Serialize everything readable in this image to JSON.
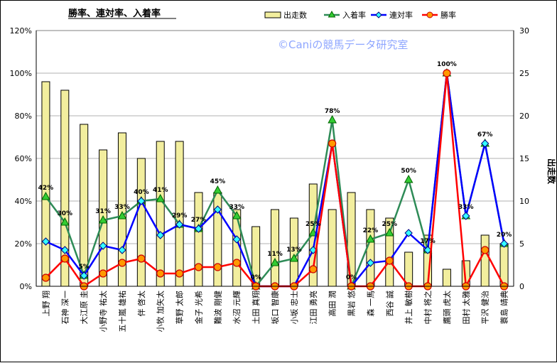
{
  "chart_data": {
    "type": "bar",
    "title": "勝率、連対率、入着率",
    "watermark": "©Caniの競馬データ研究室",
    "y2label": "出走数",
    "y1ticks": [
      "0%",
      "20%",
      "40%",
      "60%",
      "80%",
      "100%",
      "120%"
    ],
    "y2ticks": [
      "0",
      "5",
      "10",
      "15",
      "20",
      "25",
      "30"
    ],
    "y1lim": [
      0,
      120
    ],
    "y2lim": [
      0,
      30
    ],
    "grid": true,
    "legend_position": "top",
    "categories": [
      "上野 翔",
      "石神 深一",
      "大江原 圭",
      "小野寺 祐太",
      "五十嵐 雄祐",
      "伴 啓太",
      "小牧 加矢太",
      "草野 太郎",
      "金子 光希",
      "難波 剛健",
      "水沼 元輝",
      "土田 真翔",
      "坂口 智康",
      "小坂 忠士",
      "江田 勇亮",
      "高田 潤",
      "黒岩 悠",
      "森 一馬",
      "西谷 誠",
      "井上 敏樹",
      "中村 将之",
      "鷹頭 虎太",
      "田村 太雅",
      "平沢 健治",
      "蓑島 靖典"
    ],
    "series": [
      {
        "name": "出走数",
        "type": "bar",
        "axis": "right",
        "color": "#f2ee9e",
        "values": [
          24,
          23,
          19,
          16,
          18,
          15,
          17,
          17,
          11,
          11,
          9,
          7,
          9,
          8,
          12,
          9,
          11,
          9,
          8,
          4,
          6,
          2,
          3,
          6,
          5
        ]
      },
      {
        "name": "入着率",
        "type": "line",
        "axis": "left",
        "color": "#2e8b57",
        "values": [
          42,
          30,
          5,
          31,
          33,
          40,
          41,
          29,
          27,
          45,
          33,
          0,
          11,
          13,
          25,
          78,
          0,
          22,
          25,
          50,
          17,
          100,
          33,
          67,
          20
        ]
      },
      {
        "name": "連対率",
        "type": "line",
        "axis": "left",
        "color": "#0000ff",
        "values": [
          21,
          17,
          5,
          19,
          17,
          40,
          24,
          29,
          27,
          36,
          22,
          0,
          0,
          0,
          17,
          67,
          0,
          11,
          12,
          25,
          17,
          100,
          33,
          67,
          20
        ]
      },
      {
        "name": "勝率",
        "type": "line",
        "axis": "left",
        "color": "#ff0000",
        "values": [
          4,
          13,
          0,
          6,
          11,
          13,
          6,
          6,
          9,
          9,
          11,
          0,
          0,
          0,
          8,
          67,
          0,
          0,
          12,
          0,
          0,
          100,
          0,
          17,
          0
        ]
      }
    ],
    "data_labels": [
      "42%",
      "30%",
      "5%",
      "31%",
      "33%",
      "40%",
      "41%",
      "29%",
      "27%",
      "45%",
      "33%",
      "0%",
      "11%",
      "13%",
      "25%",
      "78%",
      "0%",
      "22%",
      "25%",
      "50%",
      "17%",
      "100%",
      "33%",
      "67%",
      "20%"
    ]
  }
}
